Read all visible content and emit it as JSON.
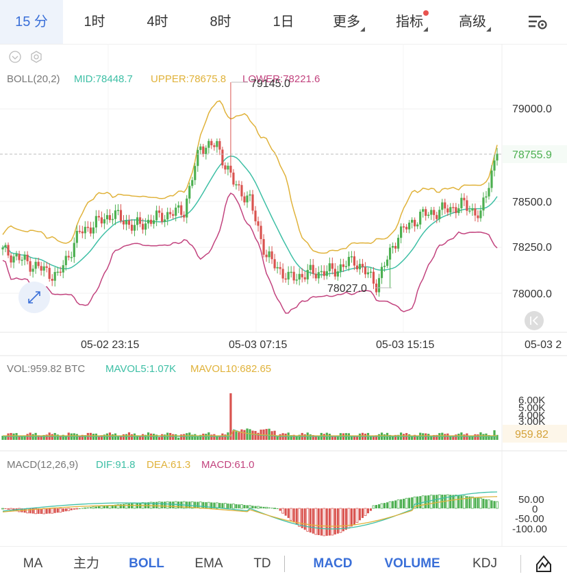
{
  "tabs": {
    "t15": "15 分",
    "t1h": "1时",
    "t4h": "4时",
    "t8h": "8时",
    "t1d": "1日",
    "more": "更多",
    "indicator": "指标",
    "advanced": "高级"
  },
  "bottom_tabs": {
    "ma": "MA",
    "main": "主力",
    "boll": "BOLL",
    "ema": "EMA",
    "td": "TD",
    "macd": "MACD",
    "volume": "VOLUME",
    "kdj": "KDJ"
  },
  "colors": {
    "up": "#4caf50",
    "down": "#d9534f",
    "mid": "#3dbfa5",
    "upper": "#e0b23a",
    "lower": "#c2437e",
    "accent": "#3a6fd8"
  },
  "chart_data": {
    "type": "candlestick",
    "boll": {
      "title": "BOLL(20,2)",
      "mid_label": "MID:78448.7",
      "upper_label": "UPPER:78675.8",
      "lower_label": "LOWER:78221.6"
    },
    "price_axis": {
      "ticks": [
        "79000.0",
        "78500.0",
        "78250.0",
        "78000.0"
      ],
      "last_price": "78755.9",
      "high_label": "79145.0",
      "low_label": "78027.0"
    },
    "time_axis": [
      "05-02 23:15",
      "05-03 07:15",
      "05-03 15:15",
      "05-03 2"
    ],
    "volume": {
      "title": "VOL:959.82 BTC",
      "mavol5": "MAVOL5:1.07K",
      "mavol10": "MAVOL10:682.65",
      "ticks": [
        "6.00K",
        "5.00K",
        "4.00K",
        "3.00K"
      ],
      "last": "959.82"
    },
    "macd": {
      "title": "MACD(12,26,9)",
      "dif": "DIF:91.8",
      "dea": "DEA:61.3",
      "macd": "MACD:61.0",
      "ticks": [
        "50.00",
        "0",
        "-50.00",
        "-100.00"
      ]
    }
  }
}
